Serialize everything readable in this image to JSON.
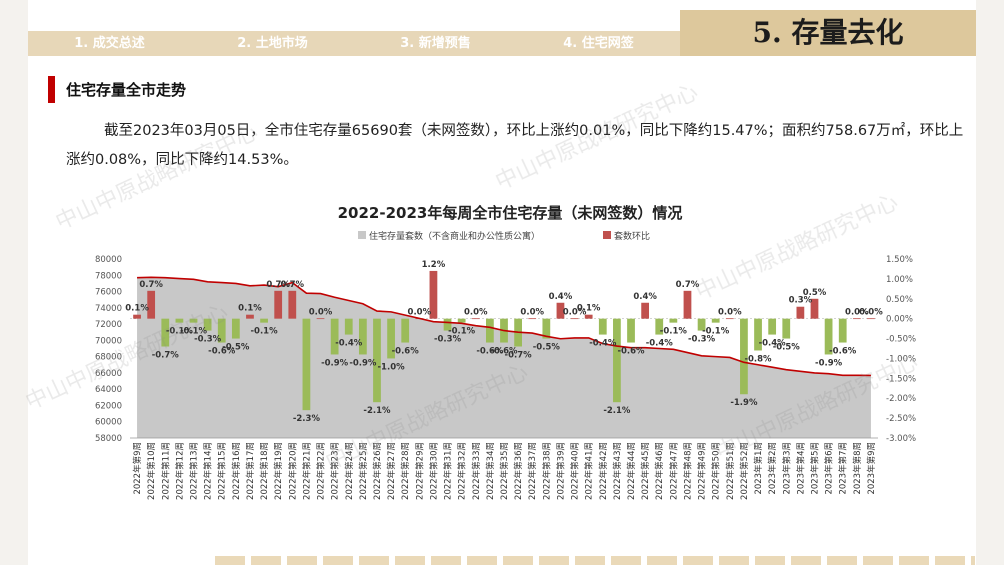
{
  "header": {
    "tabs": [
      {
        "label": "1. 成交总述"
      },
      {
        "label": "2. 土地市场"
      },
      {
        "label": "3. 新增预售"
      },
      {
        "label": "4. 住宅网签"
      }
    ],
    "section_title": "5. 存量去化"
  },
  "subtitle": "住宅存量全市走势",
  "paragraph": "截至2023年03月05日，全市住宅存量65690套（未网签数），环比上涨约0.01%，同比下降约15.47%；面积约758.67万㎡，环比上涨约0.08%，同比下降约14.53%。",
  "watermark": "中山中原战略研究中心",
  "colors": {
    "area": "#c8c8c8",
    "line": "#c00000",
    "bar_up": "#c0504d",
    "bar_down": "#9bbb59",
    "accent": "#ddc89c"
  },
  "chart_data": {
    "type": "area",
    "title": "2022-2023年每周全市住宅存量（未网签数）情况",
    "legend": [
      "住宅存量套数（不含商业和办公性质公寓）",
      "套数环比"
    ],
    "legend_position": "top-center",
    "y_left_ticks": [
      "80000",
      "78000",
      "76000",
      "74000",
      "72000",
      "70000",
      "68000",
      "66000",
      "64000",
      "62000",
      "60000",
      "58000"
    ],
    "y_right_ticks": [
      "1.50%",
      "1.00%",
      "0.50%",
      "0.00%",
      "-0.50%",
      "-1.00%",
      "-1.50%",
      "-2.00%",
      "-2.50%",
      "-3.00%"
    ],
    "ylim_left": [
      58000,
      80000
    ],
    "ylim_right": [
      -3.0,
      1.5
    ],
    "categories": [
      "2022年第9周",
      "2022年第10周",
      "2022年第11周",
      "2022年第12周",
      "2022年第13周",
      "2022年第14周",
      "2022年第15周",
      "2022年第16周",
      "2022年第17周",
      "2022年第18周",
      "2022年第19周",
      "2022年第20周",
      "2022年第21周",
      "2022年第22周",
      "2022年第23周",
      "2022年第24周",
      "2022年第25周",
      "2022年第26周",
      "2022年第27周",
      "2022年第28周",
      "2022年第29周",
      "2022年第30周",
      "2022年第31周",
      "2022年第32周",
      "2022年第33周",
      "2022年第34周",
      "2022年第35周",
      "2022年第36周",
      "2022年第37周",
      "2022年第38周",
      "2022年第39周",
      "2022年第40周",
      "2022年第41周",
      "2022年第42周",
      "2022年第43周",
      "2022年第44周",
      "2022年第45周",
      "2022年第46周",
      "2022年第47周",
      "2022年第48周",
      "2022年第49周",
      "2022年第50周",
      "2022年第51周",
      "2022年第52周",
      "2023年第1周",
      "2023年第2周",
      "2023年第3周",
      "2023年第4周",
      "2023年第5周",
      "2023年第6周",
      "2023年第7周",
      "2023年第8周",
      "2023年第9周"
    ],
    "series": [
      {
        "name": "住宅存量套数（不含商业和办公性质公寓）",
        "axis": "left",
        "values": [
          77700,
          77750,
          77700,
          77600,
          77500,
          77200,
          77100,
          77000,
          76700,
          76800,
          76600,
          77100,
          75800,
          75750,
          75300,
          74900,
          74500,
          73600,
          73500,
          73100,
          72700,
          72300,
          72200,
          72100,
          71800,
          71600,
          71200,
          71000,
          70900,
          70500,
          70200,
          70300,
          70300,
          69600,
          69300,
          69100,
          69100,
          69000,
          68900,
          68500,
          68100,
          68000,
          67900,
          67300,
          67000,
          66700,
          66400,
          66200,
          66000,
          65900,
          65700,
          65700,
          65690
        ]
      },
      {
        "name": "套数环比",
        "axis": "right",
        "values": [
          0.1,
          0.7,
          -0.7,
          -0.1,
          -0.1,
          -0.3,
          -0.6,
          -0.5,
          0.1,
          -0.1,
          0.7,
          0.7,
          -2.3,
          0.0,
          -0.9,
          -0.4,
          -0.9,
          -2.1,
          -1.0,
          -0.6,
          0.0,
          1.2,
          -0.3,
          -0.1,
          0.0,
          -0.6,
          -0.6,
          -0.7,
          0.0,
          -0.5,
          0.4,
          0.0,
          0.1,
          -0.4,
          -2.1,
          -0.6,
          0.4,
          -0.4,
          -0.1,
          0.7,
          -0.3,
          -0.1,
          0.0,
          -1.9,
          -0.8,
          -0.4,
          -0.5,
          0.3,
          0.5,
          -0.9,
          -0.6,
          0.0,
          0.0
        ]
      }
    ],
    "data_labels": [
      "0.1%",
      "0.7%",
      "-0.7%",
      "-0.1%",
      "-0.1%",
      "-0.3%",
      "-0.6%",
      "-0.5%",
      "0.1%",
      "-0.1%",
      "0.7%",
      "0.7%",
      "-2.3%",
      "0.0%",
      "-0.9%",
      "-0.4%",
      "-0.9%",
      "-2.1%",
      "-1.0%",
      "-0.6%",
      "0.0%",
      "1.2%",
      "-0.3%",
      "-0.1%",
      "0.0%",
      "-0.6%",
      "-0.6%",
      "-0.7%",
      "0.0%",
      "-0.5%",
      "0.4%",
      "0.0%",
      "0.1%",
      "-0.4%",
      "-2.1%",
      "-0.6%",
      "0.4%",
      "-0.4%",
      "-0.1%",
      "0.7%",
      "-0.3%",
      "-0.1%",
      "0.0%",
      "-1.9%",
      "-0.8%",
      "-0.4%",
      "-0.5%",
      "0.3%",
      "0.5%",
      "-0.9%",
      "-0.6%",
      "0.0%",
      "0.0%"
    ]
  }
}
